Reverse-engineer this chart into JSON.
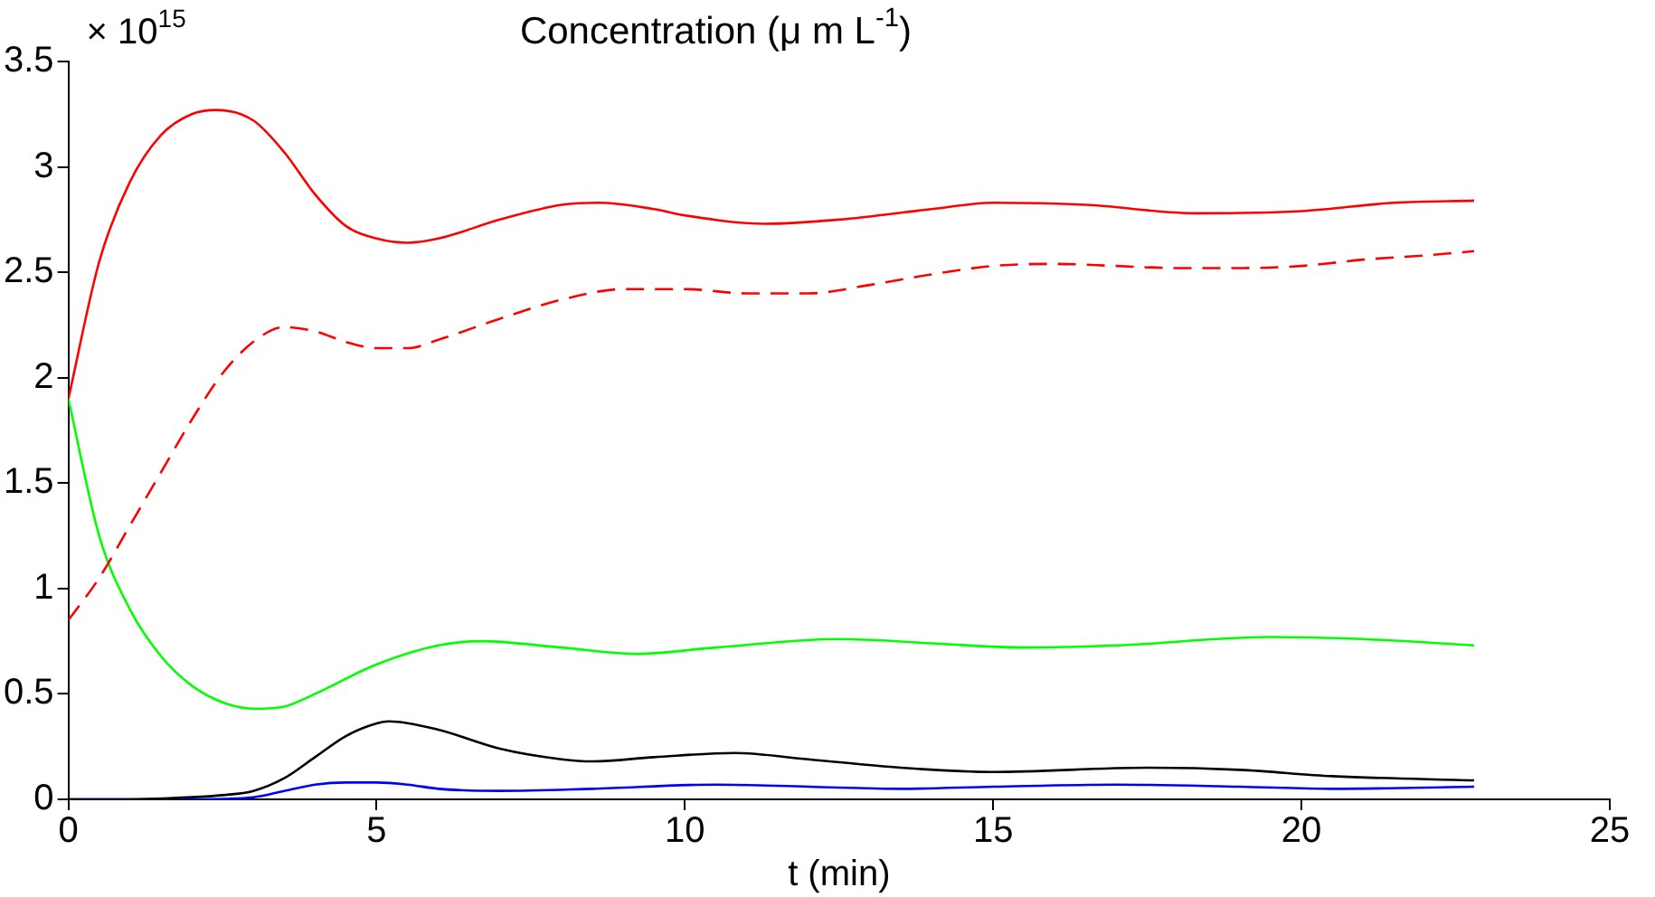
{
  "chart_data": {
    "type": "line",
    "title": "Concentration (μ m L$^{-1}$)",
    "xlabel": "t (min)",
    "annotations": [
      "× 10$^{15}$"
    ],
    "xlim": [
      0,
      25
    ],
    "xticks": [
      0,
      5,
      10,
      15,
      20,
      25
    ],
    "ylim": [
      0,
      3.5
    ],
    "yticks": [
      0,
      0.5,
      1,
      1.5,
      2,
      2.5,
      3,
      3.5
    ],
    "grid": false,
    "legend": false,
    "marker": "none",
    "series": [
      {
        "color": "#ff0000",
        "line_style": "solid",
        "x": [
          0,
          0.5,
          1,
          1.5,
          2,
          2.4,
          3,
          3.5,
          4,
          4.5,
          5,
          5.5,
          6,
          7,
          8,
          8.6,
          9.5,
          10,
          11.3,
          12.5,
          14,
          15,
          16.5,
          18.3,
          20,
          21.5,
          22.8
        ],
        "values": [
          1.9,
          2.55,
          2.93,
          3.15,
          3.25,
          3.27,
          3.22,
          3.07,
          2.87,
          2.72,
          2.66,
          2.64,
          2.66,
          2.75,
          2.82,
          2.83,
          2.8,
          2.77,
          2.73,
          2.75,
          2.8,
          2.83,
          2.82,
          2.78,
          2.79,
          2.83,
          2.84
        ]
      },
      {
        "color": "#ff0000",
        "line_style": "dashed",
        "x": [
          0,
          0.5,
          1,
          1.5,
          2,
          2.5,
          3,
          3.5,
          4,
          4.5,
          5,
          5.5,
          6,
          7,
          8,
          9,
          10,
          11,
          12,
          13,
          14,
          15,
          16,
          17,
          18,
          19,
          20,
          21,
          22,
          22.8
        ],
        "values": [
          0.85,
          1.05,
          1.3,
          1.55,
          1.8,
          2.02,
          2.17,
          2.24,
          2.22,
          2.17,
          2.14,
          2.14,
          2.18,
          2.28,
          2.37,
          2.42,
          2.42,
          2.4,
          2.4,
          2.44,
          2.49,
          2.53,
          2.54,
          2.53,
          2.52,
          2.52,
          2.53,
          2.56,
          2.58,
          2.6
        ]
      },
      {
        "color": "#00ff00",
        "line_style": "solid",
        "x": [
          0,
          0.5,
          1,
          1.5,
          2,
          2.5,
          3,
          3.5,
          4,
          5,
          6,
          6.7,
          8,
          9.2,
          10.5,
          12.5,
          14,
          15.5,
          17,
          19.5,
          21,
          22.8
        ],
        "values": [
          1.9,
          1.25,
          0.9,
          0.68,
          0.54,
          0.46,
          0.43,
          0.44,
          0.5,
          0.64,
          0.73,
          0.75,
          0.72,
          0.69,
          0.72,
          0.76,
          0.74,
          0.72,
          0.73,
          0.77,
          0.76,
          0.73
        ]
      },
      {
        "color": "#000000",
        "line_style": "solid",
        "x": [
          0,
          1,
          2,
          2.5,
          3,
          3.5,
          4,
          4.5,
          5,
          5.2,
          6,
          7,
          8,
          8.5,
          9.5,
          10.8,
          12,
          13.5,
          15,
          17.5,
          19,
          20.5,
          22.8
        ],
        "values": [
          0,
          0,
          0.01,
          0.02,
          0.04,
          0.1,
          0.2,
          0.3,
          0.36,
          0.37,
          0.33,
          0.24,
          0.19,
          0.18,
          0.2,
          0.22,
          0.19,
          0.15,
          0.13,
          0.15,
          0.14,
          0.11,
          0.09
        ]
      },
      {
        "color": "#0000ff",
        "line_style": "solid",
        "x": [
          0,
          2,
          3,
          3.5,
          4,
          4.5,
          5,
          5.5,
          6,
          7,
          8.5,
          10.5,
          12,
          13.5,
          15,
          17,
          19,
          20.5,
          22.8
        ],
        "values": [
          0,
          0,
          0.01,
          0.04,
          0.07,
          0.08,
          0.08,
          0.07,
          0.05,
          0.04,
          0.05,
          0.07,
          0.06,
          0.05,
          0.06,
          0.07,
          0.06,
          0.05,
          0.06
        ]
      }
    ]
  }
}
